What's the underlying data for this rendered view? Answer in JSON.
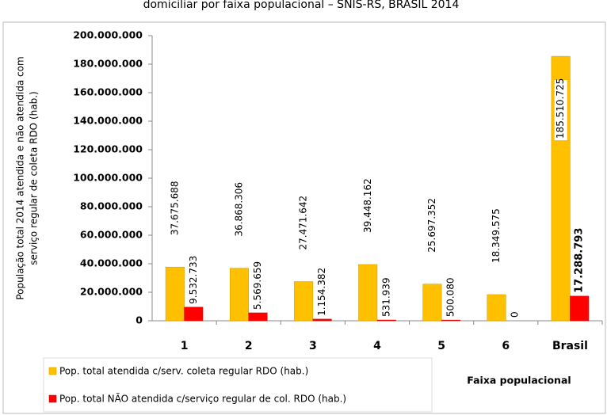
{
  "chart_data": {
    "type": "bar",
    "title": "domiciliar por faixa populacional – SNIS-RS, BRASIL 2014",
    "ylabel": [
      "População total 2014 atendida e não atendida com",
      "serviço regular de coleta RDO (hab.)"
    ],
    "xlabel": "Faixa populacional",
    "categories": [
      "1",
      "2",
      "3",
      "4",
      "5",
      "6",
      "Brasil"
    ],
    "series": [
      {
        "name": "Pop. total atendida c/serv. coleta regular RDO (hab.)",
        "color": "#ffc000",
        "values": [
          37675688,
          36868306,
          27471642,
          39448162,
          25697352,
          18349575,
          185510725
        ],
        "value_labels": [
          "37.675.688",
          "36.868.306",
          "27.471.642",
          "39.448.162",
          "25.697.352",
          "18.349.575",
          "185.510.725"
        ]
      },
      {
        "name": "Pop. total NÃO atendida c/serviço regular de col. RDO (hab.)",
        "color": "#ff0000",
        "values": [
          9532733,
          5569659,
          1154382,
          531939,
          500080,
          0,
          17288793
        ],
        "value_labels": [
          "9.532.733",
          "5.569.659",
          "1.154.382",
          "531.939",
          "500.080",
          "0",
          "17.288.793"
        ]
      }
    ],
    "ylim": [
      0,
      200000000
    ],
    "yticks": [
      0,
      {
        "value": 20000000,
        "label": "20.000.000"
      },
      {
        "value": 40000000,
        "label": "40.000.000"
      },
      {
        "value": 60000000,
        "label": "60.000.000"
      },
      {
        "value": 80000000,
        "label": "80.000.000"
      },
      {
        "value": 100000000,
        "label": "100.000.000"
      },
      {
        "value": 120000000,
        "label": "120.000.000"
      },
      {
        "value": 140000000,
        "label": "140.000.000"
      },
      {
        "value": 160000000,
        "label": "160.000.000"
      },
      {
        "value": 180000000,
        "label": "180.000.000"
      },
      {
        "value": 200000000,
        "label": "200.000.000"
      }
    ],
    "grid": false
  }
}
